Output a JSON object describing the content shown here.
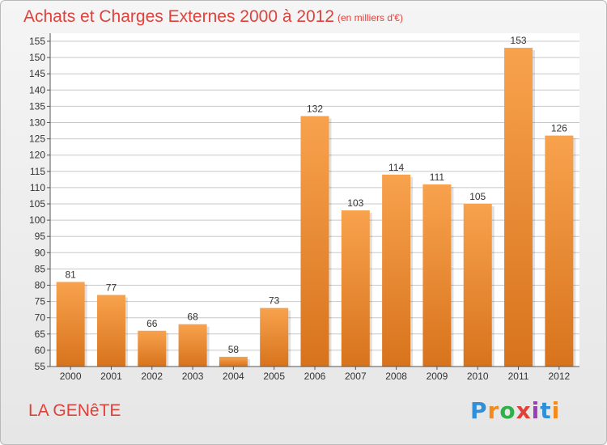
{
  "title": "Achats et Charges Externes 2000 à 2012",
  "subtitle": "(en milliers d'€)",
  "town": "LA GENêTE",
  "brand": {
    "letters": [
      "P",
      "r",
      "o",
      "x",
      "i",
      "t",
      "i"
    ],
    "colors": [
      "#2f8fd8",
      "#f28a1c",
      "#2fb04a",
      "#e0413b",
      "#9b3bb8",
      "#2f8fd8",
      "#f28a1c"
    ]
  },
  "colors": {
    "accent": "#e0413b",
    "bar_top": "#f8a24d",
    "bar_bottom": "#d8731d",
    "grid": "#c8c8c8"
  },
  "chart_data": {
    "type": "bar",
    "title": "Achats et Charges Externes 2000 à 2012",
    "subtitle": "(en milliers d'€)",
    "categories": [
      "2000",
      "2001",
      "2002",
      "2003",
      "2004",
      "2005",
      "2006",
      "2007",
      "2008",
      "2009",
      "2010",
      "2011",
      "2012"
    ],
    "values": [
      81,
      77,
      66,
      68,
      58,
      73,
      132,
      103,
      114,
      111,
      105,
      153,
      126
    ],
    "ylim": [
      55,
      155
    ],
    "yticks": [
      55,
      60,
      65,
      70,
      75,
      80,
      85,
      90,
      95,
      100,
      105,
      110,
      115,
      120,
      125,
      130,
      135,
      140,
      145,
      150,
      155
    ],
    "grid": true,
    "data_labels": true
  }
}
